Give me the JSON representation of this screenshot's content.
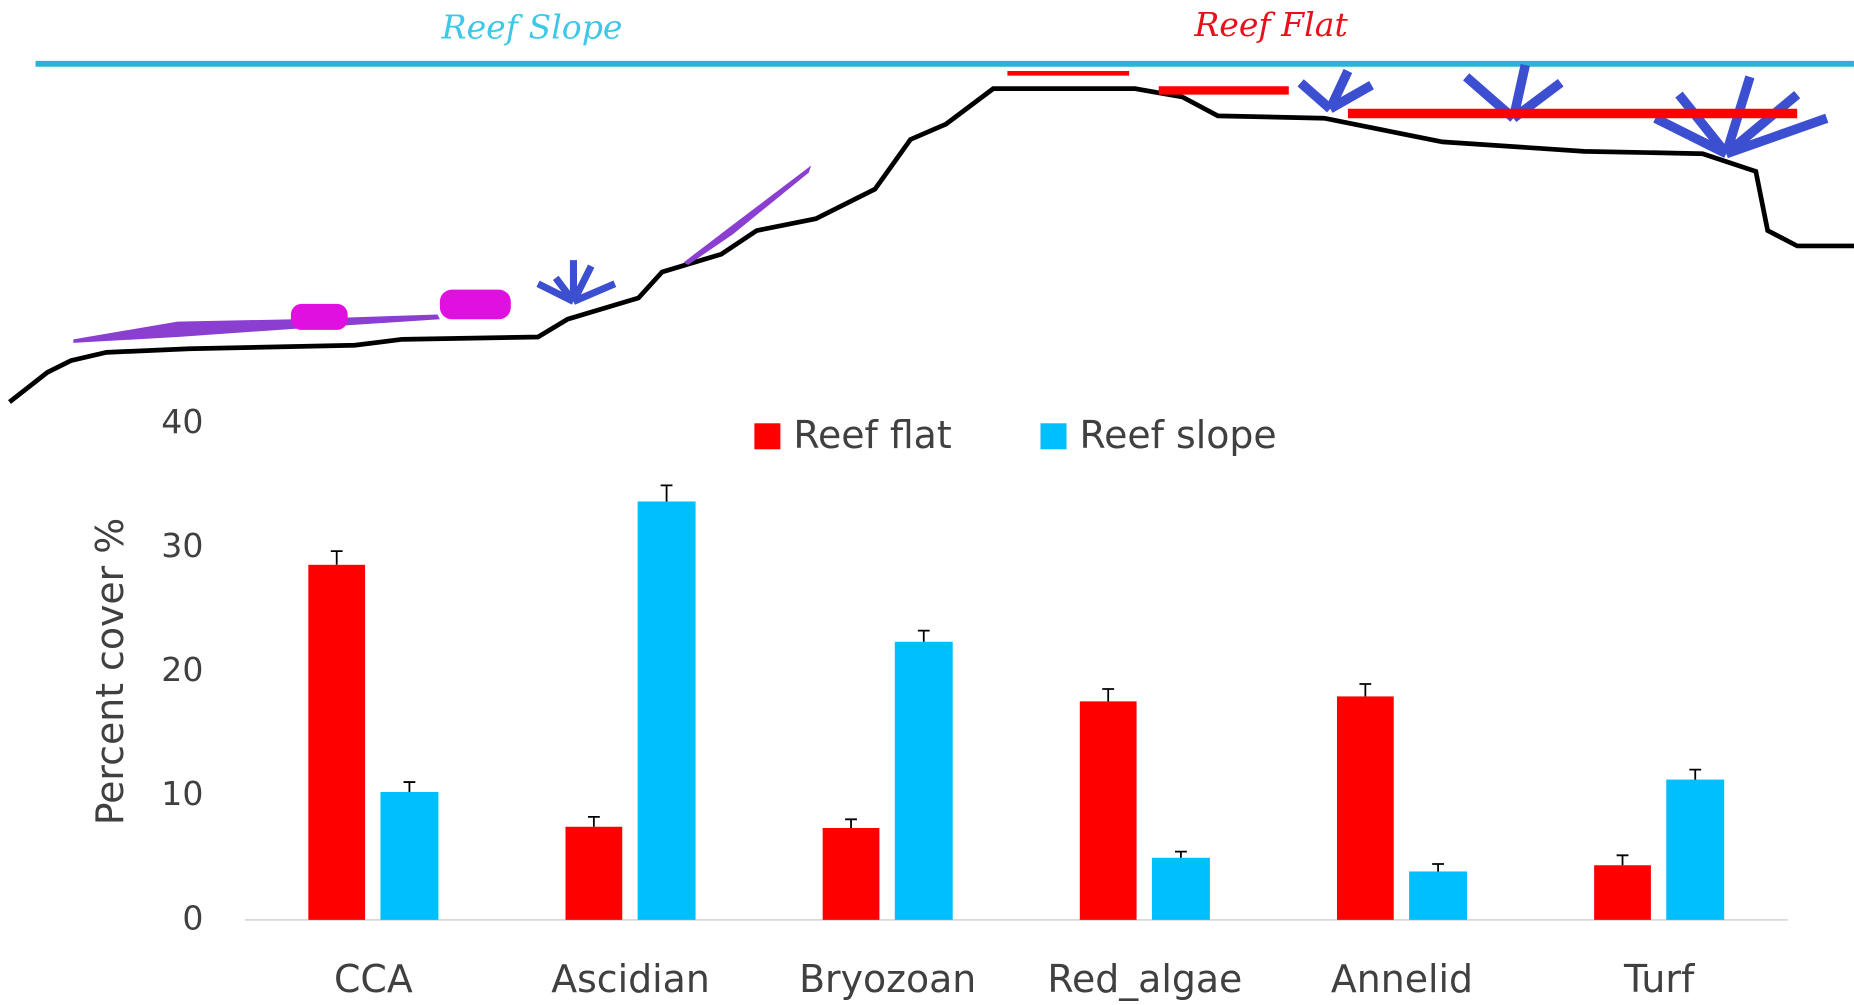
{
  "chart_data": {
    "type": "bar",
    "annotations": [
      "Reef Slope",
      "Reef Flat"
    ],
    "y_label": "Percent cover %",
    "categories": [
      "CCA",
      "Ascidian",
      "Bryozoan",
      "Red_algae",
      "Annelid",
      "Turf"
    ],
    "series": [
      {
        "name": "Reef flat",
        "color": "#ff0000",
        "values": [
          28.6,
          7.5,
          7.4,
          17.6,
          18.0,
          4.4
        ],
        "errors": [
          1.1,
          0.8,
          0.7,
          1.0,
          1.0,
          0.8
        ]
      },
      {
        "name": "Reef slope",
        "color": "#00bfff",
        "values": [
          10.3,
          33.7,
          22.4,
          5.0,
          3.9,
          11.3
        ],
        "errors": [
          0.8,
          1.3,
          0.9,
          0.5,
          0.6,
          0.8
        ]
      }
    ],
    "ylim": [
      0,
      40
    ],
    "yticks": [
      0,
      10,
      20,
      30,
      40
    ],
    "grid": false,
    "legend": "top"
  }
}
